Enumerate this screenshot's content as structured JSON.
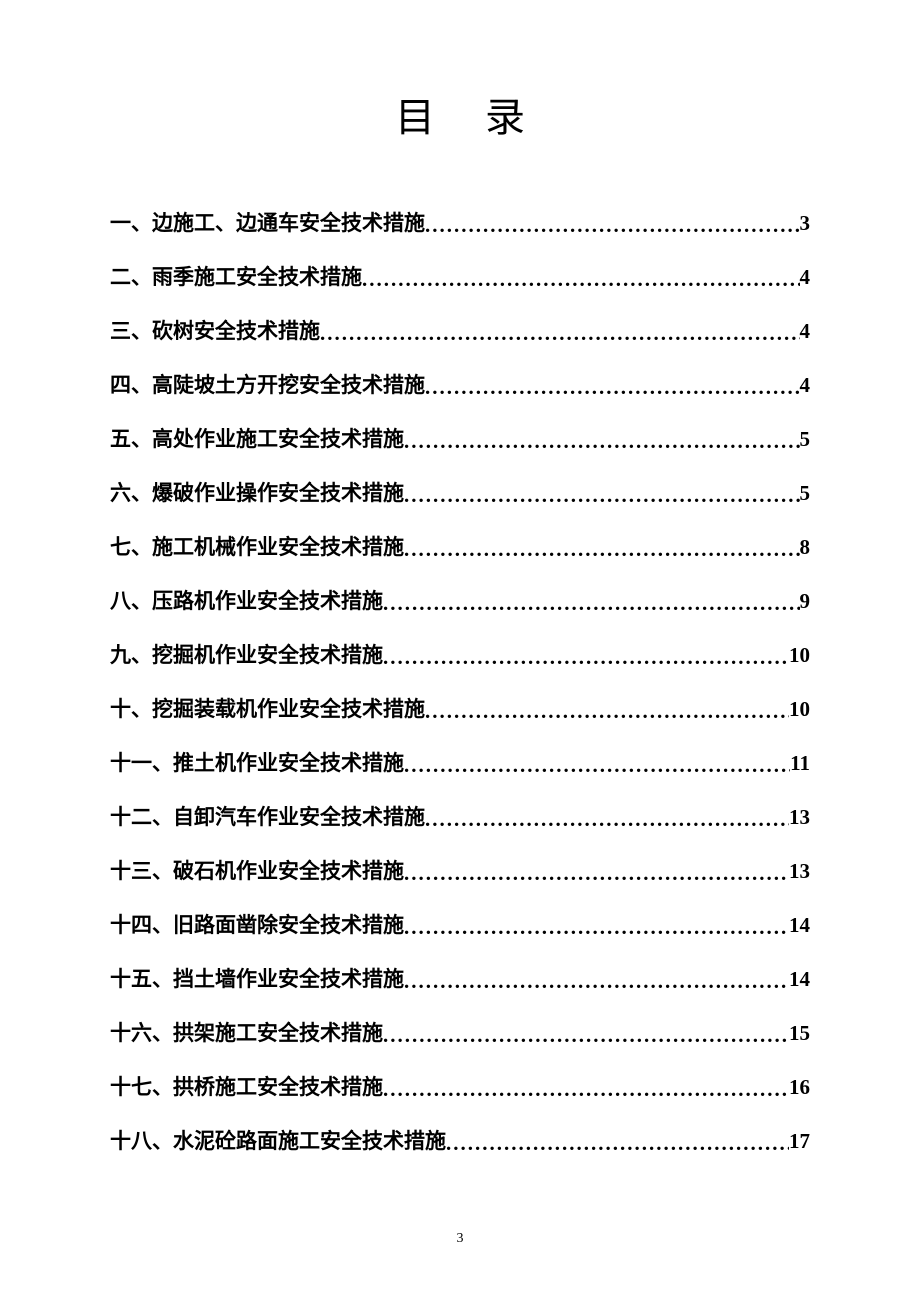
{
  "title": "目录",
  "toc": [
    {
      "label": "一、边施工、边通车安全技术措施",
      "page": "3"
    },
    {
      "label": "二、雨季施工安全技术措施",
      "page": "4"
    },
    {
      "label": "三、砍树安全技术措施",
      "page": "4"
    },
    {
      "label": "四、高陡坡土方开挖安全技术措施",
      "page": "4"
    },
    {
      "label": "五、高处作业施工安全技术措施",
      "page": "5"
    },
    {
      "label": "六、爆破作业操作安全技术措施",
      "page": "5"
    },
    {
      "label": "七、施工机械作业安全技术措施",
      "page": "8"
    },
    {
      "label": "八、压路机作业安全技术措施",
      "page": "9"
    },
    {
      "label": "九、挖掘机作业安全技术措施",
      "page": "10"
    },
    {
      "label": "十、挖掘装载机作业安全技术措施",
      "page": "10"
    },
    {
      "label": "十一、推土机作业安全技术措施",
      "page": "11"
    },
    {
      "label": "十二、自卸汽车作业安全技术措施",
      "page": "13"
    },
    {
      "label": "十三、破石机作业安全技术措施",
      "page": "13"
    },
    {
      "label": "十四、旧路面凿除安全技术措施",
      "page": "14"
    },
    {
      "label": "十五、挡土墙作业安全技术措施",
      "page": "14"
    },
    {
      "label": "十六、拱架施工安全技术措施",
      "page": "15"
    },
    {
      "label": "十七、拱桥施工安全技术措施",
      "page": "16"
    },
    {
      "label": "十八、水泥砼路面施工安全技术措施",
      "page": "17"
    }
  ],
  "pageNumber": "3",
  "colors": {
    "background": "#ffffff",
    "text": "#000000"
  },
  "typography": {
    "title_fontsize": 40,
    "entry_fontsize": 21,
    "pagenum_fontsize": 14,
    "font_family": "SimSun"
  }
}
